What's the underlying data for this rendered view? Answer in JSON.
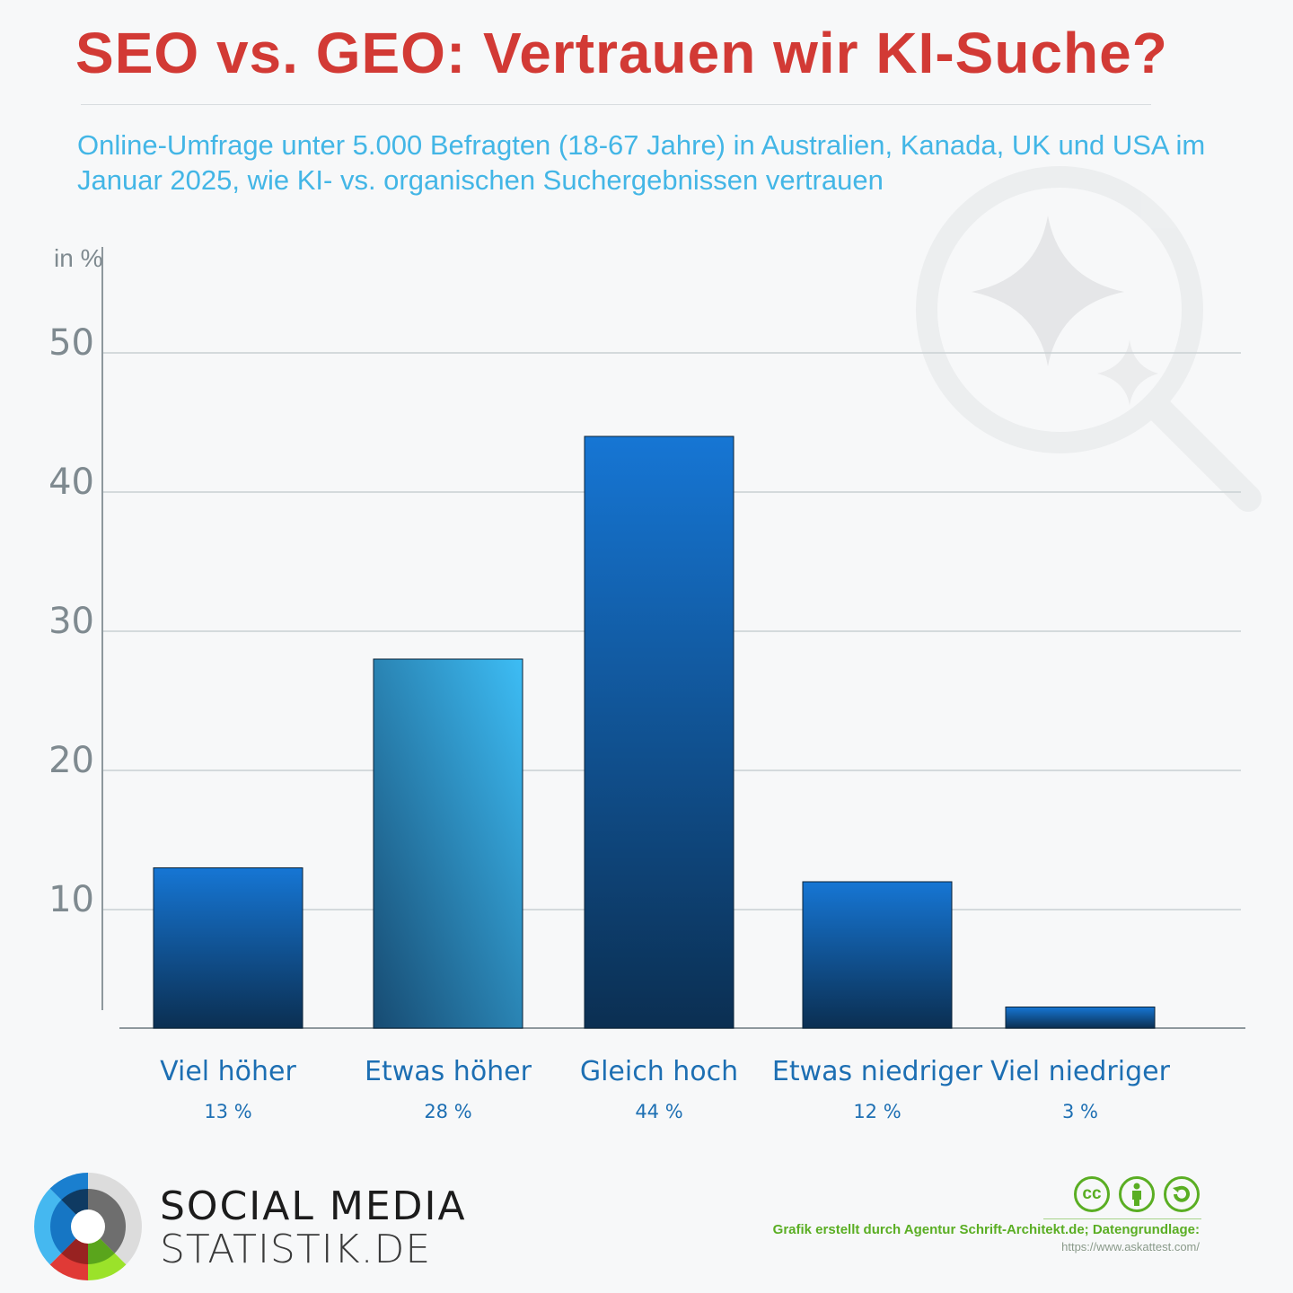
{
  "title": "SEO vs. GEO: Vertrauen wir KI-Suche?",
  "subtitle": "Online-Umfrage unter 5.000 Befragten (18-67 Jahre) in Australien, Kanada, UK und USA im Januar 2025, wie KI- vs. organischen Suchergebnissen vertrauen",
  "chart_data": {
    "type": "bar",
    "ylabel": "in %",
    "ylim": [
      0,
      50
    ],
    "yticks": [
      "10",
      "20",
      "30",
      "40",
      "50"
    ],
    "grid": true,
    "categories": [
      "Viel höher",
      "Etwas höher",
      "Gleich hoch",
      "Etwas niedriger",
      "Viel niedriger"
    ],
    "values": [
      13,
      28,
      44,
      12,
      3
    ],
    "value_labels": [
      "13 %",
      "28 %",
      "44 %",
      "12 %",
      "3 %"
    ],
    "colors": {
      "bar_top": "#1676d4",
      "bar_bottom": "#0b2f52",
      "highlight_top": "#3dbdf5",
      "highlight_bottom": "#174b72"
    }
  },
  "footer": {
    "brand_line1": "SOCIAL MEDIA",
    "brand_line2": "STATISTIK.DE",
    "license_icons": [
      "cc",
      "by",
      "sa"
    ],
    "license_cc": "cc",
    "credit": "Grafik erstellt durch Agentur Schrift-Architekt.de; Datengrundlage:",
    "source_url": "https://www.askattest.com/"
  }
}
